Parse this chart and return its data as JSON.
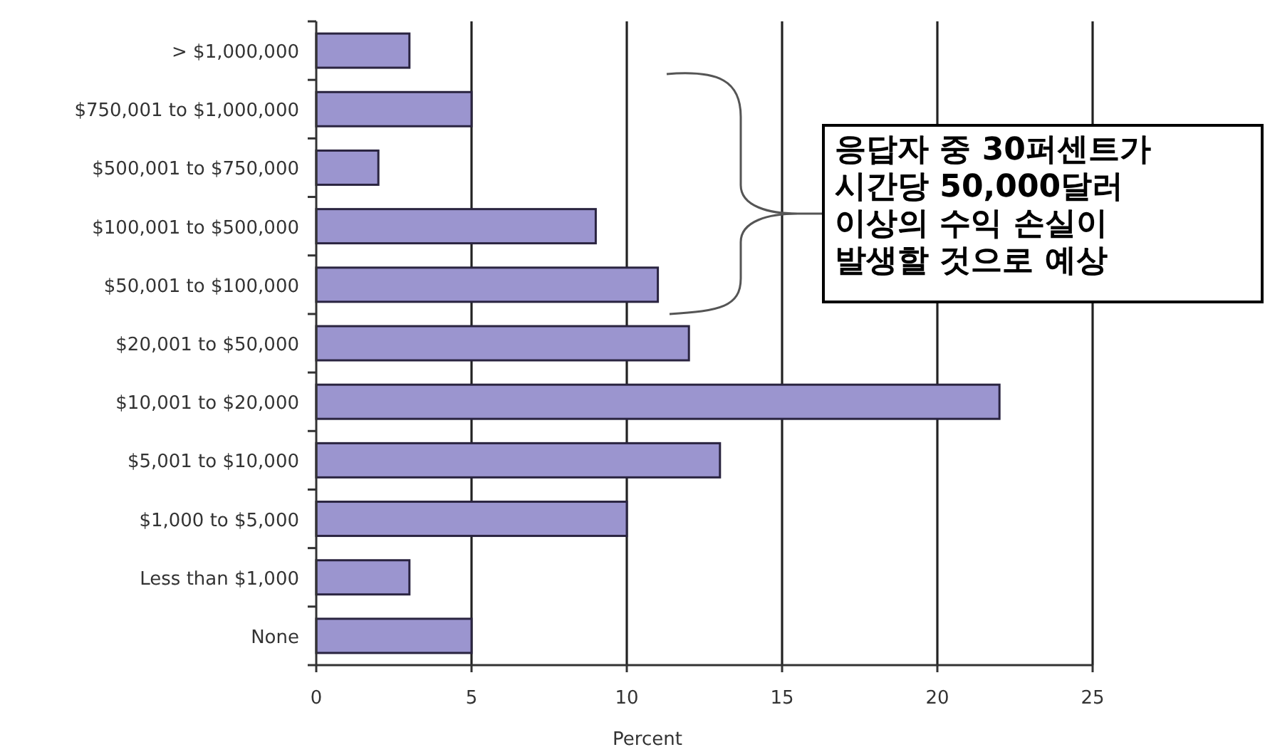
{
  "chart_data": {
    "type": "bar",
    "orientation": "horizontal",
    "categories": [
      "> $1,000,000",
      "$750,001 to $1,000,000",
      "$500,001 to $750,000",
      "$100,001 to $500,000",
      "$50,001 to $100,000",
      "$20,001 to $50,000",
      "$10,001 to $20,000",
      "$5,001 to $10,000",
      "$1,000 to $5,000",
      "Less than $1,000",
      "None"
    ],
    "values": [
      3,
      5,
      2,
      9,
      11,
      12,
      22,
      13,
      10,
      3,
      5
    ],
    "color": "#9b95cf",
    "xlim": [
      0,
      25
    ],
    "xticks": [
      0,
      5,
      10,
      15,
      20,
      25
    ],
    "xlabel": "Percent",
    "grid": "x",
    "annotations": [
      "응답자 중 30퍼센트가\n시간당 50,000달러\n이상의 수익 손실이\n발생할 것으로 예상"
    ]
  }
}
